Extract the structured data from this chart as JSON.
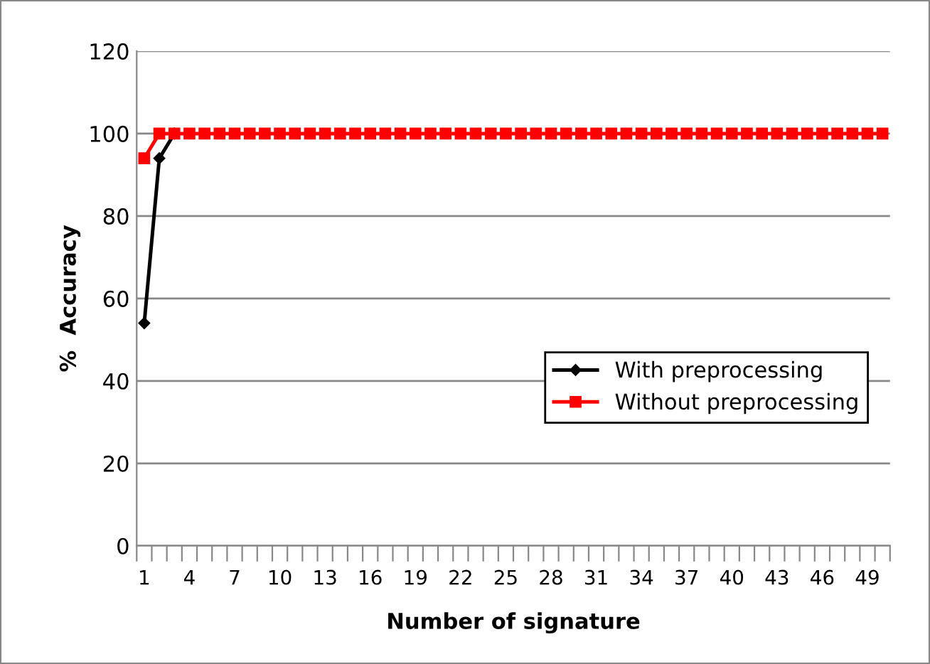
{
  "chart_data": {
    "type": "line",
    "xlabel": "Number of signature",
    "ylabel": "%  Accuracy",
    "categories": [
      "1",
      null,
      null,
      "4",
      null,
      null,
      "7",
      null,
      null,
      "10",
      null,
      null,
      "13",
      null,
      null,
      "16",
      null,
      null,
      "19",
      null,
      null,
      "22",
      null,
      null,
      "25",
      null,
      null,
      "28",
      null,
      null,
      "31",
      null,
      null,
      "34",
      null,
      null,
      "37",
      null,
      null,
      "40",
      null,
      null,
      "43",
      null,
      null,
      "46",
      null,
      null,
      "49",
      null
    ],
    "series": [
      {
        "name": "With preprocessing",
        "color": "#000000",
        "marker": "diamond",
        "values": [
          54,
          94,
          100,
          null,
          null,
          null,
          null,
          null,
          null,
          null,
          null,
          null,
          null,
          null,
          null,
          null,
          null,
          null,
          null,
          null,
          null,
          null,
          null,
          null,
          null,
          null,
          null,
          null,
          null,
          null,
          null,
          null,
          null,
          null,
          null,
          null,
          null,
          null,
          null,
          null,
          null,
          null,
          null,
          null,
          null,
          null,
          null,
          null,
          null,
          null
        ]
      },
      {
        "name": "Without preprocessing",
        "color": "#ff0000",
        "marker": "square",
        "values": [
          94,
          100,
          100,
          100,
          100,
          100,
          100,
          100,
          100,
          100,
          100,
          100,
          100,
          100,
          100,
          100,
          100,
          100,
          100,
          100,
          100,
          100,
          100,
          100,
          100,
          100,
          100,
          100,
          100,
          100,
          100,
          100,
          100,
          100,
          100,
          100,
          100,
          100,
          100,
          100,
          100,
          100,
          100,
          100,
          100,
          100,
          100,
          100,
          100,
          100
        ]
      }
    ],
    "ylim": [
      0,
      120
    ],
    "yticks": [
      0,
      20,
      40,
      60,
      80,
      100,
      120
    ],
    "grid": "y",
    "legend": "right",
    "line_style": "solid"
  }
}
